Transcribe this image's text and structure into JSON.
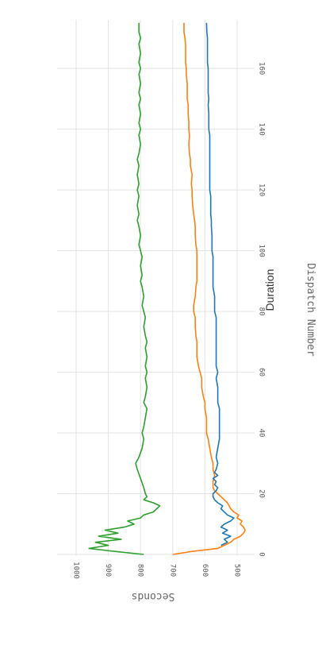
{
  "chart_data": {
    "type": "line",
    "title": "Duration",
    "xlabel": "Dispatch Number",
    "ylabel": "Seconds",
    "xlim": [
      0,
      176
    ],
    "ylim": [
      440,
      1010
    ],
    "x_ticks": [
      0,
      20,
      40,
      60,
      80,
      100,
      120,
      140,
      160
    ],
    "y_ticks": [
      500,
      600,
      700,
      800,
      900,
      1000
    ],
    "grid": true,
    "orientation": "rotated-90-clockwise",
    "series": [
      {
        "color": "#2ca02c",
        "points": [
          [
            0,
            790
          ],
          [
            1,
            880
          ],
          [
            2,
            960
          ],
          [
            3,
            900
          ],
          [
            4,
            940
          ],
          [
            5,
            860
          ],
          [
            6,
            930
          ],
          [
            7,
            870
          ],
          [
            8,
            910
          ],
          [
            9,
            850
          ],
          [
            10,
            820
          ],
          [
            11,
            840
          ],
          [
            12,
            800
          ],
          [
            13,
            790
          ],
          [
            14,
            760
          ],
          [
            15,
            750
          ],
          [
            16,
            740
          ],
          [
            17,
            760
          ],
          [
            18,
            790
          ],
          [
            19,
            780
          ],
          [
            20,
            785
          ],
          [
            22,
            790
          ],
          [
            25,
            800
          ],
          [
            28,
            810
          ],
          [
            30,
            815
          ],
          [
            32,
            805
          ],
          [
            35,
            795
          ],
          [
            38,
            790
          ],
          [
            40,
            795
          ],
          [
            42,
            790
          ],
          [
            45,
            785
          ],
          [
            48,
            780
          ],
          [
            50,
            790
          ],
          [
            52,
            785
          ],
          [
            55,
            780
          ],
          [
            58,
            785
          ],
          [
            60,
            780
          ],
          [
            62,
            785
          ],
          [
            65,
            780
          ],
          [
            68,
            785
          ],
          [
            70,
            780
          ],
          [
            72,
            785
          ],
          [
            75,
            790
          ],
          [
            78,
            785
          ],
          [
            80,
            790
          ],
          [
            82,
            795
          ],
          [
            85,
            790
          ],
          [
            88,
            795
          ],
          [
            90,
            800
          ],
          [
            92,
            795
          ],
          [
            95,
            800
          ],
          [
            98,
            795
          ],
          [
            100,
            800
          ],
          [
            102,
            805
          ],
          [
            105,
            800
          ],
          [
            108,
            805
          ],
          [
            110,
            810
          ],
          [
            112,
            805
          ],
          [
            115,
            810
          ],
          [
            118,
            805
          ],
          [
            120,
            810
          ],
          [
            122,
            805
          ],
          [
            125,
            810
          ],
          [
            128,
            805
          ],
          [
            130,
            810
          ],
          [
            132,
            805
          ],
          [
            135,
            800
          ],
          [
            138,
            805
          ],
          [
            140,
            800
          ],
          [
            142,
            805
          ],
          [
            145,
            800
          ],
          [
            148,
            805
          ],
          [
            150,
            800
          ],
          [
            152,
            805
          ],
          [
            155,
            800
          ],
          [
            158,
            805
          ],
          [
            160,
            800
          ],
          [
            162,
            805
          ],
          [
            165,
            800
          ],
          [
            168,
            805
          ],
          [
            170,
            800
          ],
          [
            172,
            805
          ],
          [
            175,
            805
          ]
        ]
      },
      {
        "color": "#ff7f0e",
        "points": [
          [
            0,
            700
          ],
          [
            1,
            640
          ],
          [
            2,
            560
          ],
          [
            3,
            540
          ],
          [
            4,
            520
          ],
          [
            5,
            510
          ],
          [
            6,
            490
          ],
          [
            7,
            480
          ],
          [
            8,
            475
          ],
          [
            9,
            480
          ],
          [
            10,
            490
          ],
          [
            11,
            485
          ],
          [
            12,
            500
          ],
          [
            13,
            495
          ],
          [
            14,
            510
          ],
          [
            15,
            520
          ],
          [
            16,
            525
          ],
          [
            17,
            530
          ],
          [
            18,
            540
          ],
          [
            19,
            550
          ],
          [
            20,
            560
          ],
          [
            21,
            570
          ],
          [
            22,
            575
          ],
          [
            24,
            575
          ],
          [
            26,
            570
          ],
          [
            28,
            575
          ],
          [
            30,
            575
          ],
          [
            32,
            580
          ],
          [
            35,
            585
          ],
          [
            38,
            590
          ],
          [
            40,
            595
          ],
          [
            42,
            595
          ],
          [
            45,
            595
          ],
          [
            48,
            600
          ],
          [
            50,
            600
          ],
          [
            52,
            605
          ],
          [
            55,
            610
          ],
          [
            58,
            610
          ],
          [
            60,
            615
          ],
          [
            62,
            620
          ],
          [
            65,
            625
          ],
          [
            68,
            625
          ],
          [
            70,
            625
          ],
          [
            72,
            628
          ],
          [
            75,
            630
          ],
          [
            78,
            630
          ],
          [
            80,
            635
          ],
          [
            82,
            635
          ],
          [
            85,
            630
          ],
          [
            88,
            628
          ],
          [
            90,
            625
          ],
          [
            92,
            625
          ],
          [
            95,
            625
          ],
          [
            98,
            625
          ],
          [
            100,
            625
          ],
          [
            102,
            628
          ],
          [
            105,
            630
          ],
          [
            108,
            630
          ],
          [
            110,
            632
          ],
          [
            112,
            635
          ],
          [
            115,
            638
          ],
          [
            118,
            640
          ],
          [
            120,
            640
          ],
          [
            122,
            642
          ],
          [
            125,
            640
          ],
          [
            128,
            645
          ],
          [
            130,
            645
          ],
          [
            132,
            648
          ],
          [
            135,
            650
          ],
          [
            138,
            648
          ],
          [
            140,
            650
          ],
          [
            142,
            650
          ],
          [
            145,
            652
          ],
          [
            148,
            652
          ],
          [
            150,
            655
          ],
          [
            152,
            655
          ],
          [
            155,
            655
          ],
          [
            158,
            658
          ],
          [
            160,
            658
          ],
          [
            162,
            660
          ],
          [
            165,
            660
          ],
          [
            168,
            660
          ],
          [
            170,
            662
          ],
          [
            172,
            665
          ],
          [
            175,
            665
          ]
        ]
      },
      {
        "color": "#1f77b4",
        "points": [
          [
            3,
            550
          ],
          [
            4,
            530
          ],
          [
            5,
            540
          ],
          [
            6,
            520
          ],
          [
            7,
            545
          ],
          [
            8,
            530
          ],
          [
            9,
            550
          ],
          [
            10,
            540
          ],
          [
            11,
            520
          ],
          [
            12,
            510
          ],
          [
            13,
            530
          ],
          [
            14,
            540
          ],
          [
            15,
            550
          ],
          [
            16,
            545
          ],
          [
            17,
            560
          ],
          [
            18,
            570
          ],
          [
            19,
            575
          ],
          [
            20,
            575
          ],
          [
            21,
            565
          ],
          [
            22,
            560
          ],
          [
            23,
            570
          ],
          [
            24,
            565
          ],
          [
            25,
            575
          ],
          [
            26,
            560
          ],
          [
            27,
            570
          ],
          [
            28,
            565
          ],
          [
            30,
            560
          ],
          [
            32,
            565
          ],
          [
            35,
            560
          ],
          [
            38,
            555
          ],
          [
            40,
            555
          ],
          [
            42,
            555
          ],
          [
            45,
            555
          ],
          [
            48,
            555
          ],
          [
            50,
            560
          ],
          [
            52,
            560
          ],
          [
            55,
            560
          ],
          [
            58,
            565
          ],
          [
            60,
            560
          ],
          [
            62,
            565
          ],
          [
            65,
            565
          ],
          [
            68,
            565
          ],
          [
            70,
            565
          ],
          [
            72,
            565
          ],
          [
            75,
            565
          ],
          [
            78,
            565
          ],
          [
            80,
            570
          ],
          [
            82,
            570
          ],
          [
            85,
            570
          ],
          [
            88,
            575
          ],
          [
            90,
            575
          ],
          [
            92,
            575
          ],
          [
            95,
            575
          ],
          [
            98,
            575
          ],
          [
            100,
            578
          ],
          [
            102,
            578
          ],
          [
            105,
            578
          ],
          [
            108,
            580
          ],
          [
            110,
            580
          ],
          [
            112,
            582
          ],
          [
            115,
            582
          ],
          [
            118,
            582
          ],
          [
            120,
            585
          ],
          [
            122,
            585
          ],
          [
            125,
            585
          ],
          [
            128,
            585
          ],
          [
            130,
            585
          ],
          [
            132,
            585
          ],
          [
            135,
            585
          ],
          [
            138,
            585
          ],
          [
            140,
            588
          ],
          [
            142,
            588
          ],
          [
            145,
            588
          ],
          [
            148,
            590
          ],
          [
            150,
            588
          ],
          [
            152,
            590
          ],
          [
            155,
            590
          ],
          [
            158,
            590
          ],
          [
            160,
            590
          ],
          [
            162,
            592
          ],
          [
            165,
            592
          ],
          [
            168,
            592
          ],
          [
            170,
            592
          ],
          [
            172,
            594
          ],
          [
            175,
            595
          ]
        ]
      }
    ]
  }
}
